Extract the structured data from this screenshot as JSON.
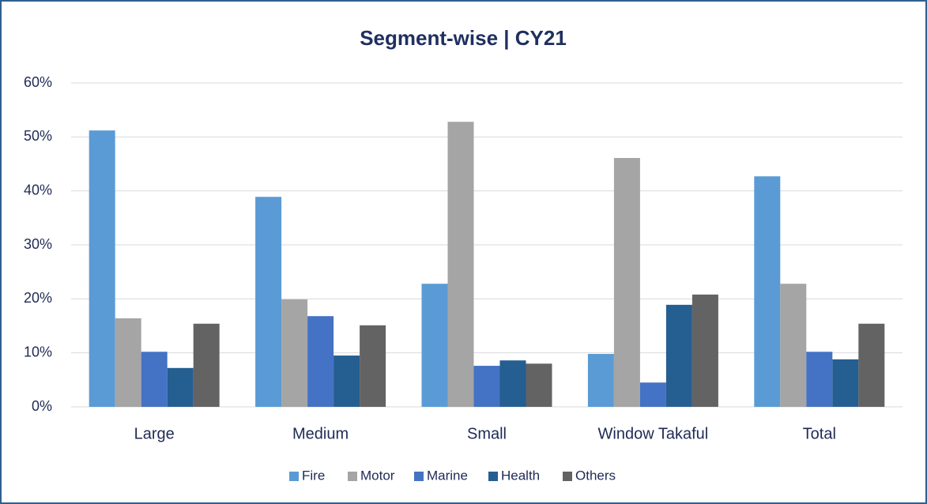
{
  "chart_data": {
    "type": "bar",
    "title": "Segment-wise | CY21",
    "categories": [
      "Large",
      "Medium",
      "Small",
      "Window Takaful",
      "Total"
    ],
    "series": [
      {
        "name": "Fire",
        "color": "#5b9bd5",
        "values": [
          51.2,
          38.9,
          22.8,
          9.8,
          42.7
        ]
      },
      {
        "name": "Motor",
        "color": "#a5a5a5",
        "values": [
          16.4,
          19.9,
          52.8,
          46.1,
          22.8
        ]
      },
      {
        "name": "Marine",
        "color": "#4472c4",
        "values": [
          10.2,
          16.8,
          7.6,
          4.5,
          10.2
        ]
      },
      {
        "name": "Health",
        "color": "#255e91",
        "values": [
          7.2,
          9.5,
          8.6,
          18.9,
          8.8
        ]
      },
      {
        "name": "Others",
        "color": "#636363",
        "values": [
          15.4,
          15.1,
          8.0,
          20.8,
          15.4
        ]
      }
    ],
    "ylim": [
      0,
      60
    ],
    "yticks": [
      {
        "value": 0,
        "label": "0%"
      },
      {
        "value": 10,
        "label": "10%"
      },
      {
        "value": 20,
        "label": "20%"
      },
      {
        "value": 30,
        "label": "30%"
      },
      {
        "value": 40,
        "label": "40%"
      },
      {
        "value": 50,
        "label": "50%"
      },
      {
        "value": 60,
        "label": "60%"
      }
    ],
    "grid": true,
    "legend": "bottom"
  }
}
